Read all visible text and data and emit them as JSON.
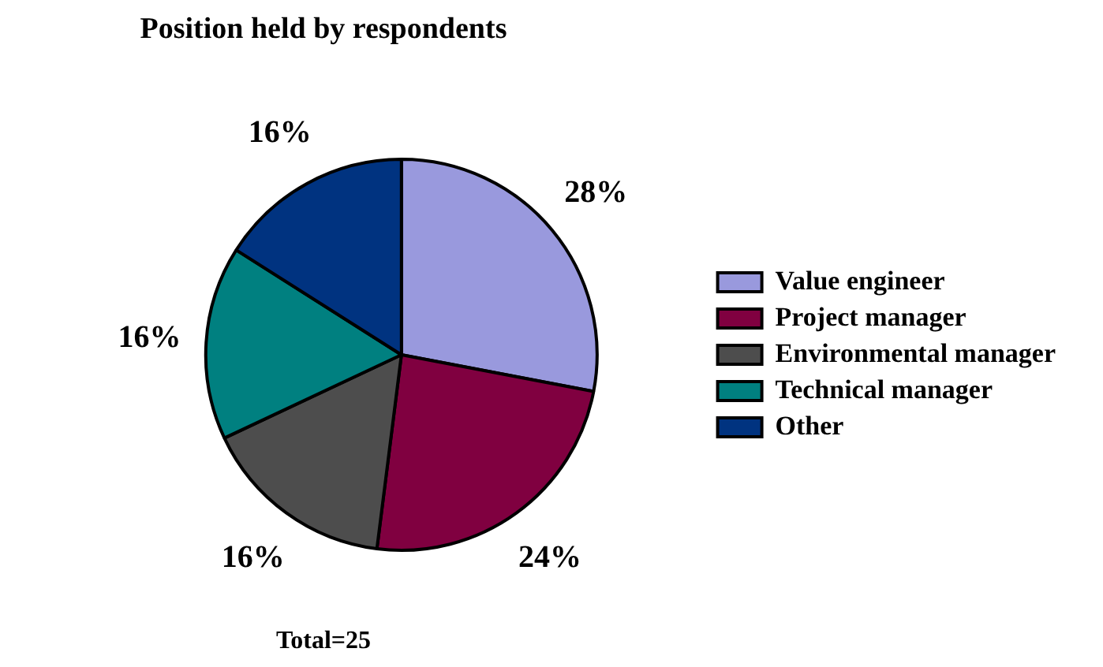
{
  "chart_data": {
    "type": "pie",
    "title": "Position held by respondents",
    "categories": [
      "Value engineer",
      "Project manager",
      "Environmental manager",
      "Technical manager",
      "Other"
    ],
    "values": [
      28,
      24,
      16,
      16,
      16
    ],
    "value_labels": [
      "28%",
      "24%",
      "16%",
      "16%",
      "16%"
    ],
    "colors": [
      "#9999dd",
      "#800040",
      "#4d4d4d",
      "#008080",
      "#003380"
    ],
    "legend": "right",
    "annotations": [
      "Total=25"
    ]
  }
}
